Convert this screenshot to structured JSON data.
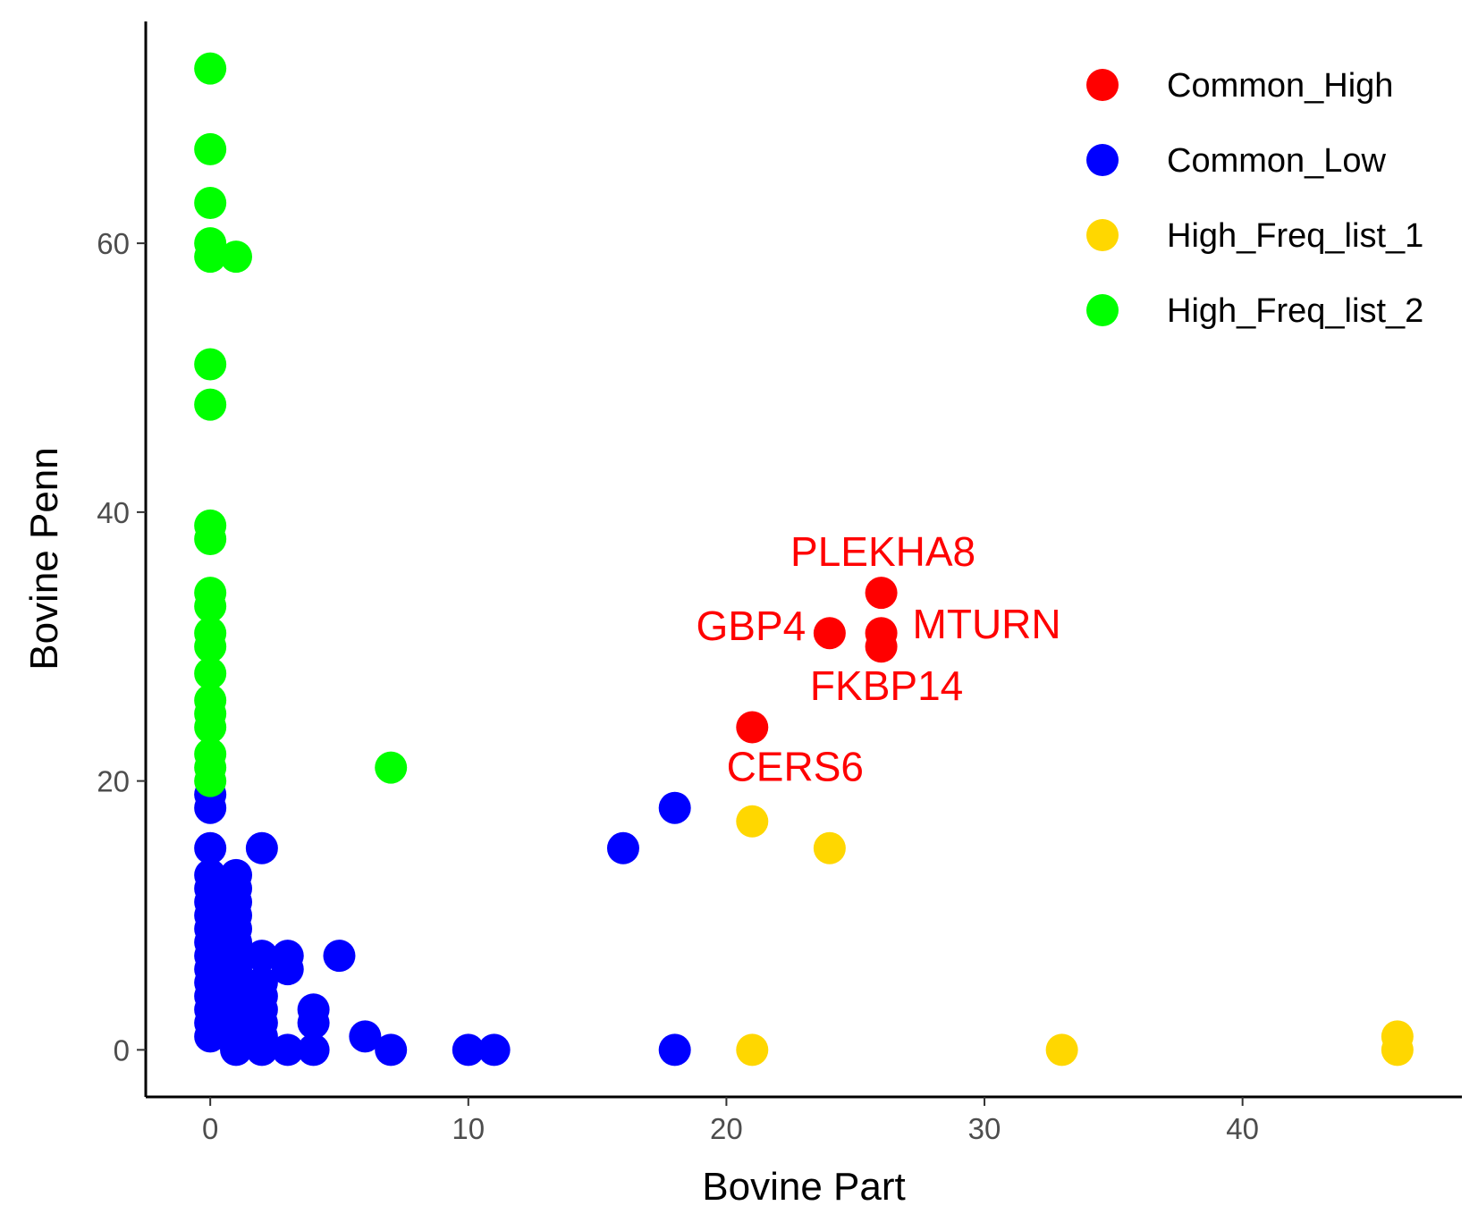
{
  "chart_data": {
    "type": "scatter",
    "xlabel": "Bovine Part",
    "ylabel": "Bovine Penn",
    "xlim": [
      -2.5,
      48.5
    ],
    "ylim": [
      -3.5,
      76.5
    ],
    "x_ticks": [
      0,
      10,
      20,
      30,
      40
    ],
    "y_ticks": [
      0,
      20,
      40,
      60
    ],
    "grid": false,
    "legend_position": "top-right",
    "series": [
      {
        "name": "Common_High",
        "color": "#ff0000",
        "points": [
          [
            26,
            34
          ],
          [
            24,
            31
          ],
          [
            26,
            31
          ],
          [
            26,
            30
          ],
          [
            21,
            24
          ]
        ]
      },
      {
        "name": "Common_Low",
        "color": "#0000ff",
        "points": [
          [
            0,
            19
          ],
          [
            0,
            18
          ],
          [
            0,
            15
          ],
          [
            0,
            13
          ],
          [
            0,
            12
          ],
          [
            0,
            11
          ],
          [
            0,
            10
          ],
          [
            0,
            9
          ],
          [
            0,
            8
          ],
          [
            0,
            7
          ],
          [
            0,
            6
          ],
          [
            0,
            5
          ],
          [
            0,
            4
          ],
          [
            0,
            3
          ],
          [
            0,
            2
          ],
          [
            0,
            1
          ],
          [
            1,
            13
          ],
          [
            1,
            12
          ],
          [
            1,
            11
          ],
          [
            1,
            10
          ],
          [
            1,
            9
          ],
          [
            1,
            8
          ],
          [
            1,
            7
          ],
          [
            1,
            6
          ],
          [
            1,
            5
          ],
          [
            1,
            4
          ],
          [
            1,
            3
          ],
          [
            1,
            2
          ],
          [
            1,
            1
          ],
          [
            1,
            0
          ],
          [
            2,
            15
          ],
          [
            2,
            7
          ],
          [
            2,
            5
          ],
          [
            2,
            4
          ],
          [
            2,
            3
          ],
          [
            2,
            2
          ],
          [
            2,
            1
          ],
          [
            2,
            0
          ],
          [
            3,
            7
          ],
          [
            3,
            6
          ],
          [
            3,
            0
          ],
          [
            4,
            3
          ],
          [
            4,
            2
          ],
          [
            4,
            0
          ],
          [
            5,
            7
          ],
          [
            6,
            1
          ],
          [
            7,
            0
          ],
          [
            10,
            0
          ],
          [
            11,
            0
          ],
          [
            16,
            15
          ],
          [
            18,
            18
          ],
          [
            18,
            0
          ]
        ]
      },
      {
        "name": "High_Freq_list_1",
        "color": "#ffd700",
        "points": [
          [
            21,
            17
          ],
          [
            24,
            15
          ],
          [
            21,
            0
          ],
          [
            33,
            0
          ],
          [
            46,
            1
          ],
          [
            46,
            0
          ]
        ]
      },
      {
        "name": "High_Freq_list_2",
        "color": "#00ff00",
        "points": [
          [
            0,
            73
          ],
          [
            0,
            67
          ],
          [
            0,
            63
          ],
          [
            0,
            60
          ],
          [
            0,
            59
          ],
          [
            1,
            59
          ],
          [
            0,
            51
          ],
          [
            0,
            48
          ],
          [
            0,
            39
          ],
          [
            0,
            38
          ],
          [
            0,
            34
          ],
          [
            0,
            33
          ],
          [
            0,
            31
          ],
          [
            0,
            30
          ],
          [
            0,
            28
          ],
          [
            0,
            26
          ],
          [
            0,
            25
          ],
          [
            0,
            24
          ],
          [
            0,
            22
          ],
          [
            0,
            21
          ],
          [
            0,
            20
          ],
          [
            7,
            21
          ]
        ]
      }
    ],
    "annotations": [
      {
        "text": "PLEKHA8",
        "x": 26,
        "y": 34
      },
      {
        "text": "GBP4",
        "x": 24,
        "y": 31
      },
      {
        "text": "MTURN",
        "x": 26,
        "y": 31
      },
      {
        "text": "FKBP14",
        "x": 26,
        "y": 30
      },
      {
        "text": "CERS6",
        "x": 21,
        "y": 24
      }
    ],
    "annotation_color": "#ff0000"
  }
}
